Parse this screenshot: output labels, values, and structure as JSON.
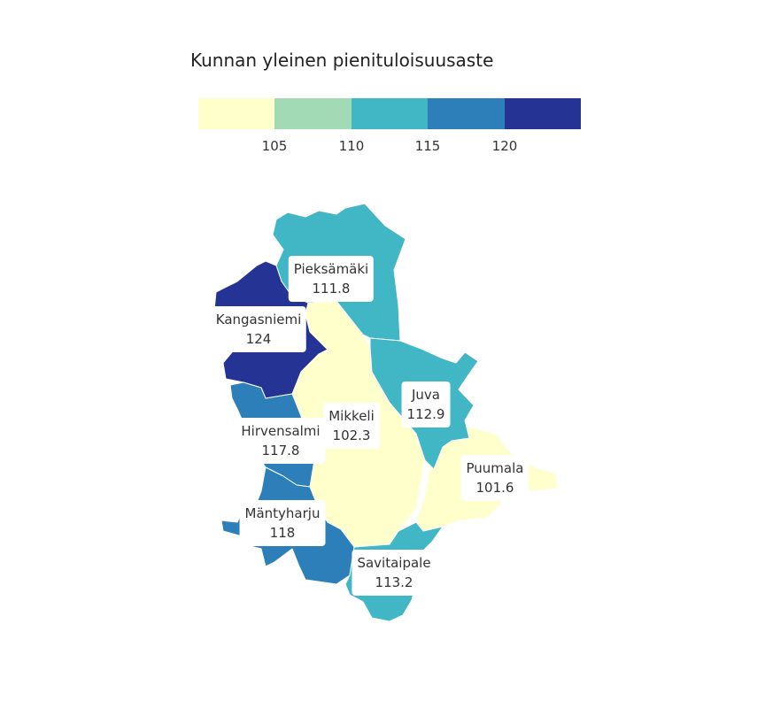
{
  "title": "Kunnan yleinen pienituloisuusaste",
  "legend": {
    "colors": [
      "#ffffcc",
      "#a1dab4",
      "#41b6c4",
      "#2c7fb8",
      "#253494"
    ],
    "ticks": [
      "105",
      "110",
      "115",
      "120"
    ]
  },
  "municipalities": [
    {
      "name": "Pieksämäki",
      "value": "111.8",
      "color": "#41b6c4"
    },
    {
      "name": "Kangasniemi",
      "value": "124",
      "color": "#253494"
    },
    {
      "name": "Juva",
      "value": "112.9",
      "color": "#41b6c4"
    },
    {
      "name": "Mikkeli",
      "value": "102.3",
      "color": "#ffffcc"
    },
    {
      "name": "Hirvensalmi",
      "value": "117.8",
      "color": "#2c7fb8"
    },
    {
      "name": "Puumala",
      "value": "101.6",
      "color": "#ffffcc"
    },
    {
      "name": "Mäntyharju",
      "value": "118",
      "color": "#2c7fb8"
    },
    {
      "name": "Savitaipale",
      "value": "113.2",
      "color": "#41b6c4"
    }
  ]
}
